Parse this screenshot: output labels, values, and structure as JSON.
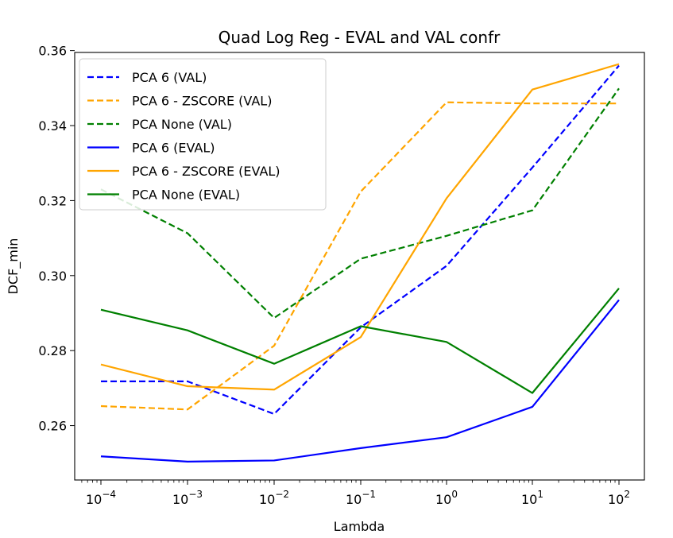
{
  "chart_data": {
    "type": "line",
    "title": "Quad Log Reg - EVAL and VAL confr",
    "xlabel": "Lambda",
    "ylabel": "DCF_min",
    "x_scale": "log",
    "x": [
      0.0001,
      0.001,
      0.01,
      0.1,
      1,
      10,
      100
    ],
    "x_tick_labels": [
      {
        "base": "10",
        "exp": "−4"
      },
      {
        "base": "10",
        "exp": "−3"
      },
      {
        "base": "10",
        "exp": "−2"
      },
      {
        "base": "10",
        "exp": "−1"
      },
      {
        "base": "10",
        "exp": "0"
      },
      {
        "base": "10",
        "exp": "1"
      },
      {
        "base": "10",
        "exp": "2"
      }
    ],
    "ylim": [
      0.2455,
      0.3595
    ],
    "yticks": [
      0.26,
      0.28,
      0.3,
      0.32,
      0.34,
      0.36
    ],
    "y_tick_labels": [
      "0.26",
      "0.28",
      "0.30",
      "0.32",
      "0.34",
      "0.36"
    ],
    "grid": false,
    "legend_position": "top-left",
    "series": [
      {
        "name": "PCA 6 (VAL)",
        "color": "#0000ff",
        "style": "dashed",
        "values": [
          0.2718,
          0.2718,
          0.2631,
          0.2862,
          0.3026,
          0.3288,
          0.356
        ]
      },
      {
        "name": "PCA 6 - ZSCORE (VAL)",
        "color": "#ffa500",
        "style": "dashed",
        "values": [
          0.2652,
          0.2643,
          0.2813,
          0.3224,
          0.3462,
          0.3459,
          0.3459
        ]
      },
      {
        "name": "PCA None (VAL)",
        "color": "#008000",
        "style": "dashed",
        "values": [
          0.323,
          0.3113,
          0.2887,
          0.3045,
          0.3106,
          0.3174,
          0.3499
        ]
      },
      {
        "name": "PCA 6 (EVAL)",
        "color": "#0000ff",
        "style": "solid",
        "values": [
          0.2518,
          0.2504,
          0.2507,
          0.254,
          0.2569,
          0.265,
          0.2935
        ]
      },
      {
        "name": "PCA 6 - ZSCORE (EVAL)",
        "color": "#ffa500",
        "style": "solid",
        "values": [
          0.2763,
          0.2705,
          0.2696,
          0.2836,
          0.3206,
          0.3496,
          0.3564
        ]
      },
      {
        "name": "PCA None (EVAL)",
        "color": "#008000",
        "style": "solid",
        "values": [
          0.2909,
          0.2854,
          0.2765,
          0.2865,
          0.2823,
          0.2687,
          0.2966
        ]
      }
    ]
  }
}
